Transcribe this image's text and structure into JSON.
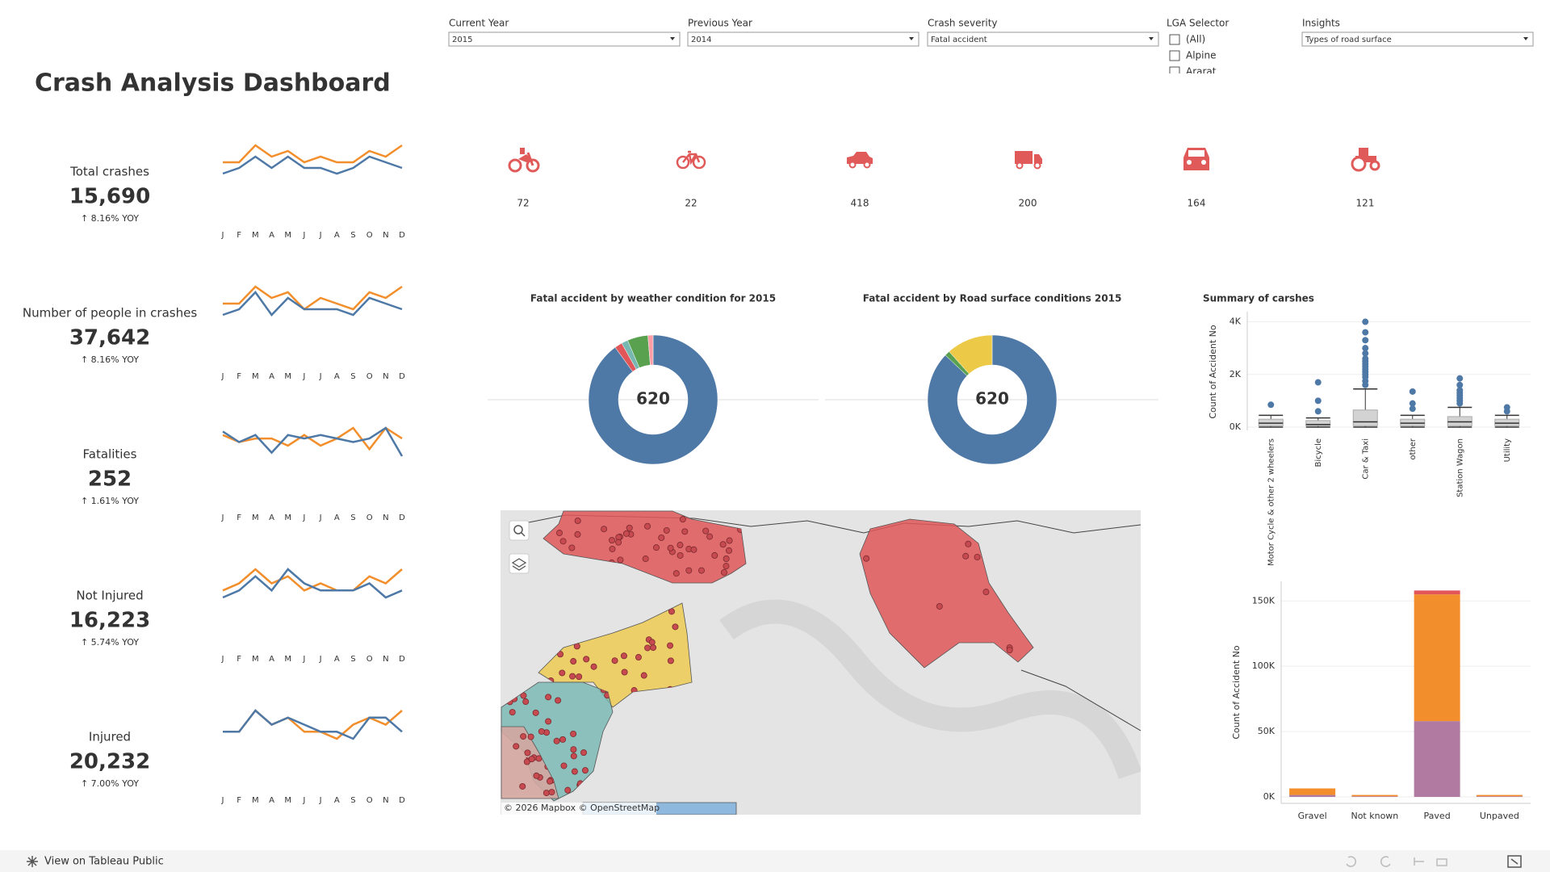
{
  "filters": [
    {
      "label": "Current Year",
      "value": "2015"
    },
    {
      "label": "Previous Year",
      "value": "2014"
    },
    {
      "label": "Crash severity",
      "value": "Fatal accident"
    },
    {
      "label": "Insights",
      "value": "Types of road surface"
    }
  ],
  "lga_selector": {
    "label": "LGA Selector",
    "options": [
      "(All)",
      "Alpine",
      "Ararat"
    ]
  },
  "title": "Crash Analysis Dashboard",
  "months": [
    "J",
    "F",
    "M",
    "A",
    "M",
    "J",
    "J",
    "A",
    "S",
    "O",
    "N",
    "D"
  ],
  "kpis": [
    {
      "label": "Total crashes",
      "value": "15,690",
      "yoy": "↑ 8.16% YOY",
      "series": [
        {
          "color": "#f28e2b",
          "values": [
            6,
            6,
            9,
            7,
            8,
            6,
            7,
            6,
            6,
            8,
            7,
            9
          ]
        },
        {
          "color": "#4e79a7",
          "values": [
            4,
            5,
            7,
            5,
            7,
            5,
            5,
            4,
            5,
            7,
            6,
            5
          ]
        }
      ]
    },
    {
      "label": "Number of people in crashes",
      "value": "37,642",
      "yoy": "↑ 8.16% YOY",
      "series": [
        {
          "color": "#f28e2b",
          "values": [
            6,
            6,
            9,
            7,
            8,
            5,
            7,
            6,
            5,
            8,
            7,
            9
          ]
        },
        {
          "color": "#4e79a7",
          "values": [
            4,
            5,
            8,
            4,
            7,
            5,
            5,
            5,
            4,
            7,
            6,
            5
          ]
        }
      ]
    },
    {
      "label": "Fatalities",
      "value": "252",
      "yoy": "↑ 1.61% YOY",
      "series": [
        {
          "color": "#f28e2b",
          "values": [
            7,
            5,
            6,
            6,
            4,
            7,
            4,
            6,
            9,
            3,
            9,
            6
          ]
        },
        {
          "color": "#4e79a7",
          "values": [
            8,
            5,
            7,
            2,
            7,
            6,
            7,
            6,
            5,
            6,
            9,
            1
          ]
        }
      ]
    },
    {
      "label": "Not Injured",
      "value": "16,223",
      "yoy": "↑ 5.74% YOY",
      "series": [
        {
          "color": "#f28e2b",
          "values": [
            5,
            6,
            8,
            6,
            7,
            5,
            6,
            5,
            5,
            7,
            6,
            8
          ]
        },
        {
          "color": "#4e79a7",
          "values": [
            4,
            5,
            7,
            5,
            8,
            6,
            5,
            5,
            5,
            6,
            4,
            5
          ]
        }
      ]
    },
    {
      "label": "Injured",
      "value": "20,232",
      "yoy": "↑ 7.00% YOY",
      "series": [
        {
          "color": "#f28e2b",
          "values": [
            5,
            5,
            8,
            6,
            7,
            5,
            5,
            4,
            6,
            7,
            6,
            8
          ]
        },
        {
          "color": "#4e79a7",
          "values": [
            5,
            5,
            8,
            6,
            7,
            6,
            5,
            5,
            4,
            7,
            7,
            5
          ]
        }
      ]
    }
  ],
  "vehicle_counts": [
    72,
    22,
    418,
    200,
    164,
    121
  ],
  "donuts": [
    {
      "type": "pie",
      "title": "Fatal accident by weather condition for 2015",
      "total": 620,
      "values": [
        558,
        12,
        10,
        32,
        8
      ],
      "colors": [
        "#4e79a7",
        "#e15759",
        "#76b7b2",
        "#59a14f",
        "#ff9da7"
      ]
    },
    {
      "type": "pie",
      "title": "Fatal accident by Road surface conditions 2015",
      "total": 620,
      "values": [
        540,
        8,
        72
      ],
      "colors": [
        "#4e79a7",
        "#59a14f",
        "#edc948"
      ]
    }
  ],
  "box_chart": {
    "type": "box",
    "title": "Summary of carshes",
    "y_label": "Count of Accident No",
    "ylim": [
      0,
      4200
    ],
    "yticks": [
      {
        "value": 0,
        "label": "0K"
      },
      {
        "value": 2000,
        "label": "2K"
      },
      {
        "value": 4000,
        "label": "4K"
      }
    ],
    "categories": [
      "Motor Cycle & other 2 wheelers",
      "Bicycle",
      "Car & Taxi",
      "other",
      "Station Wagon",
      "Utility"
    ],
    "lower": [
      0,
      0,
      0,
      0,
      0,
      0
    ],
    "q1": [
      50,
      50,
      50,
      50,
      50,
      50
    ],
    "median": [
      150,
      100,
      200,
      150,
      200,
      150
    ],
    "q3": [
      300,
      250,
      650,
      300,
      400,
      300
    ],
    "upper": [
      450,
      350,
      1450,
      450,
      750,
      450
    ],
    "outliers": [
      [
        850
      ],
      [
        600,
        1000,
        1700
      ],
      [
        1600,
        1750,
        1900,
        2000,
        2100,
        2200,
        2300,
        2400,
        2500,
        2600,
        2800,
        3000,
        3300,
        3600,
        4000
      ],
      [
        700,
        900,
        1350
      ],
      [
        900,
        1000,
        1100,
        1200,
        1300,
        1400,
        1600,
        1850
      ],
      [
        600,
        750
      ]
    ],
    "color": "#4e79a7"
  },
  "bar_chart": {
    "type": "bar",
    "stacked": true,
    "y_label": "Count of Accident No",
    "ylim": [
      0,
      165000
    ],
    "yticks": [
      {
        "value": 0,
        "label": "0K"
      },
      {
        "value": 50000,
        "label": "50K"
      },
      {
        "value": 100000,
        "label": "100K"
      },
      {
        "value": 150000,
        "label": "150K"
      }
    ],
    "categories": [
      "Gravel",
      "Not known",
      "Paved",
      "Unpaved"
    ],
    "series": [
      {
        "color": "#b07aa1",
        "values": [
          1500,
          500,
          58000,
          500
        ]
      },
      {
        "color": "#f28e2b",
        "values": [
          5000,
          1000,
          97000,
          1000
        ]
      },
      {
        "color": "#e15759",
        "values": [
          0,
          0,
          3000,
          0
        ]
      }
    ]
  },
  "map": {
    "attribution": "© 2026 Mapbox © OpenStreetMap"
  },
  "footer": {
    "link": "View on Tableau Public"
  }
}
